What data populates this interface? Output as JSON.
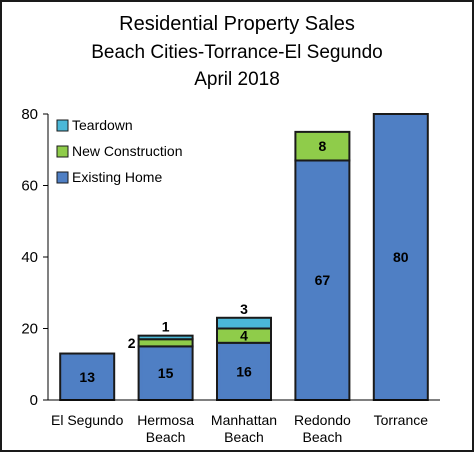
{
  "chart_data": {
    "type": "bar",
    "stacked": true,
    "title": [
      "Residential Property Sales",
      "Beach Cities-Torrance-El Segundo",
      "April 2018"
    ],
    "xlabel": "",
    "ylabel": "",
    "ylim": [
      0,
      80
    ],
    "yticks": [
      0,
      20,
      40,
      60,
      80
    ],
    "grid": false,
    "legend_position": "top-left",
    "categories": [
      [
        "El Segundo"
      ],
      [
        "Hermosa",
        "Beach"
      ],
      [
        "Manhattan",
        "Beach"
      ],
      [
        "Redondo",
        "Beach"
      ],
      [
        "Torrance"
      ]
    ],
    "series": [
      {
        "name": "Existing Home",
        "color": "#4f7fc4",
        "values": [
          13,
          15,
          16,
          67,
          80
        ],
        "labels": [
          "13",
          "15",
          "16",
          "67",
          "80"
        ]
      },
      {
        "name": "New Construction",
        "color": "#8fcc4a",
        "values": [
          0,
          2,
          4,
          8,
          0
        ],
        "labels": [
          "",
          "2",
          "4",
          "8",
          ""
        ]
      },
      {
        "name": "Teardown",
        "color": "#4bb8d8",
        "values": [
          0,
          1,
          3,
          0,
          0
        ],
        "labels": [
          "",
          "1",
          "3",
          "",
          ""
        ]
      }
    ]
  }
}
